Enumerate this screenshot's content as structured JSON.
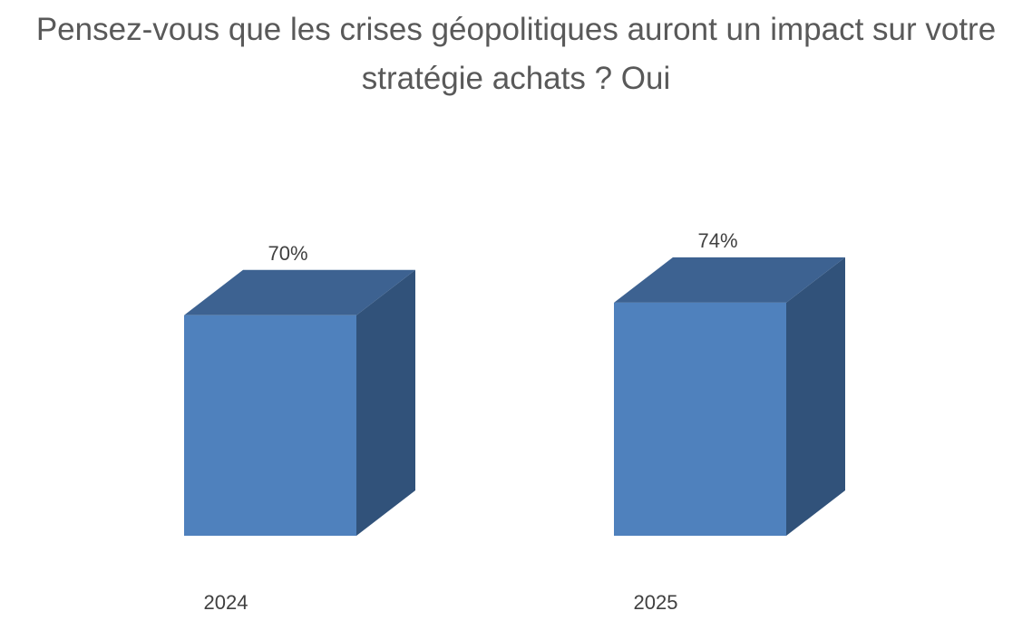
{
  "chart_data": {
    "type": "bar",
    "title": "Pensez-vous que les crises géopolitiques auront un impact sur votre stratégie achats ? Oui",
    "categories": [
      "2024",
      "2025"
    ],
    "series": [
      {
        "values": [
          70,
          74
        ],
        "labels": [
          "70%",
          "74%"
        ]
      }
    ],
    "unit": "%",
    "three_d": true,
    "grid": false,
    "legend": "none",
    "colors": {
      "front": "#4f81bd",
      "top": "#3d6291",
      "side": "#31527a",
      "label_text": "#404040",
      "title_text": "#595959"
    }
  }
}
